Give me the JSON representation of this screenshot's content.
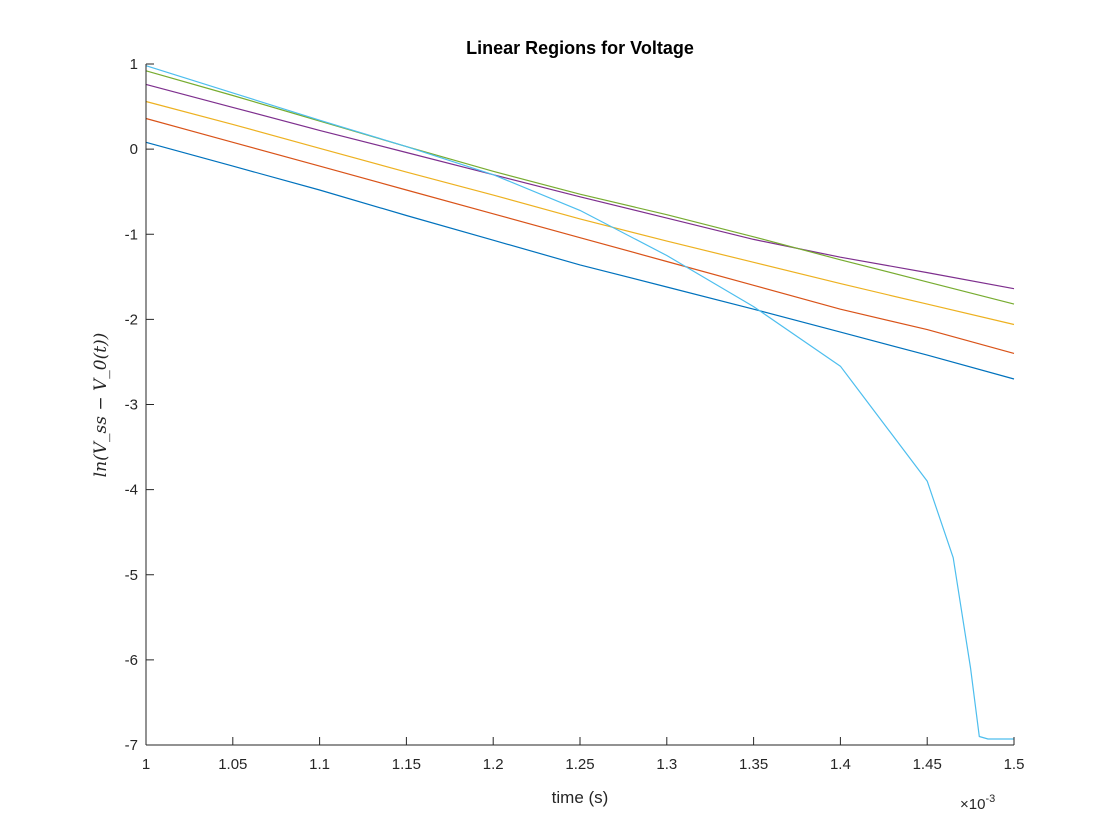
{
  "chart_data": {
    "type": "line",
    "title": "Linear Regions for Voltage",
    "xlabel": "time (s)",
    "ylabel": "ln(V_ss − V_0(t))",
    "xlim": [
      1.0,
      1.5
    ],
    "ylim": [
      -7,
      1
    ],
    "x_exponent_label": "×10",
    "x_exponent_power": "-3",
    "xticks": [
      1.0,
      1.05,
      1.1,
      1.15,
      1.2,
      1.25,
      1.3,
      1.35,
      1.4,
      1.45,
      1.5
    ],
    "xtick_labels": [
      "1",
      "1.05",
      "1.1",
      "1.15",
      "1.2",
      "1.25",
      "1.3",
      "1.35",
      "1.4",
      "1.45",
      "1.5"
    ],
    "yticks": [
      1,
      0,
      -1,
      -2,
      -3,
      -4,
      -5,
      -6,
      -7
    ],
    "ytick_labels": [
      "1",
      "0",
      "-1",
      "-2",
      "-3",
      "-4",
      "-5",
      "-6",
      "-7"
    ],
    "grid": false,
    "legend": "none",
    "series": [
      {
        "color": "#0072BD",
        "x": [
          1.0,
          1.05,
          1.1,
          1.15,
          1.2,
          1.25,
          1.3,
          1.35,
          1.4,
          1.45,
          1.5
        ],
        "y": [
          0.08,
          -0.2,
          -0.48,
          -0.78,
          -1.07,
          -1.36,
          -1.62,
          -1.88,
          -2.15,
          -2.42,
          -2.7
        ]
      },
      {
        "color": "#D95319",
        "x": [
          1.0,
          1.05,
          1.1,
          1.15,
          1.2,
          1.25,
          1.3,
          1.35,
          1.4,
          1.45,
          1.5
        ],
        "y": [
          0.36,
          0.08,
          -0.2,
          -0.48,
          -0.76,
          -1.04,
          -1.32,
          -1.6,
          -1.88,
          -2.12,
          -2.4
        ]
      },
      {
        "color": "#EDB120",
        "x": [
          1.0,
          1.05,
          1.1,
          1.15,
          1.2,
          1.25,
          1.3,
          1.35,
          1.4,
          1.45,
          1.5
        ],
        "y": [
          0.56,
          0.29,
          0.01,
          -0.27,
          -0.54,
          -0.82,
          -1.08,
          -1.33,
          -1.58,
          -1.82,
          -2.06
        ]
      },
      {
        "color": "#7E2F8E",
        "x": [
          1.0,
          1.05,
          1.1,
          1.15,
          1.2,
          1.25,
          1.3,
          1.35,
          1.4,
          1.45,
          1.5
        ],
        "y": [
          0.76,
          0.49,
          0.22,
          -0.04,
          -0.3,
          -0.56,
          -0.81,
          -1.06,
          -1.27,
          -1.45,
          -1.64
        ]
      },
      {
        "color": "#77AC30",
        "x": [
          1.0,
          1.05,
          1.1,
          1.15,
          1.2,
          1.25,
          1.3,
          1.35,
          1.4,
          1.45,
          1.5
        ],
        "y": [
          0.92,
          0.63,
          0.33,
          0.03,
          -0.26,
          -0.53,
          -0.77,
          -1.03,
          -1.3,
          -1.56,
          -1.82
        ]
      },
      {
        "color": "#4DBEEE",
        "x": [
          1.0,
          1.05,
          1.1,
          1.15,
          1.2,
          1.25,
          1.3,
          1.35,
          1.4,
          1.45,
          1.465,
          1.475,
          1.48,
          1.485,
          1.5
        ],
        "y": [
          0.98,
          0.66,
          0.34,
          0.03,
          -0.3,
          -0.72,
          -1.25,
          -1.85,
          -2.55,
          -3.9,
          -4.8,
          -6.1,
          -6.9,
          -6.93,
          -6.93
        ]
      }
    ]
  }
}
